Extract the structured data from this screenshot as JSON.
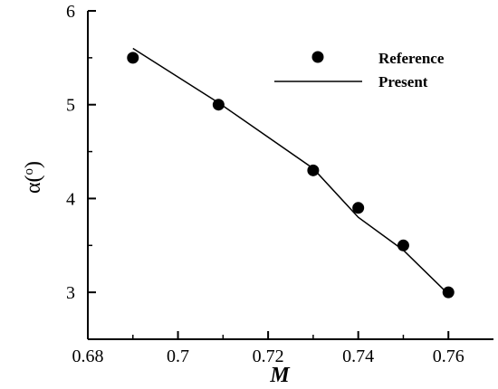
{
  "chart_data": {
    "type": "scatter",
    "xlabel": "M",
    "ylabel": "α(°)",
    "ylabel_main": "α(",
    "ylabel_sup": "o",
    "ylabel_close": ")",
    "xlim": [
      0.68,
      0.77
    ],
    "ylim": [
      2.5,
      6
    ],
    "x_ticks": [
      0.68,
      0.7,
      0.72,
      0.74,
      0.76
    ],
    "x_tick_labels": [
      "0.68",
      "0.7",
      "0.72",
      "0.74",
      "0.76"
    ],
    "y_ticks": [
      3,
      4,
      5,
      6
    ],
    "y_tick_labels": [
      "3",
      "4",
      "5",
      "6"
    ],
    "grid": false,
    "legend_position": "top-right",
    "series": [
      {
        "name": "Reference",
        "style": "markers",
        "color": "#000000",
        "x": [
          0.69,
          0.709,
          0.73,
          0.74,
          0.75,
          0.76
        ],
        "y": [
          5.5,
          5.0,
          4.3,
          3.9,
          3.5,
          3.0
        ]
      },
      {
        "name": "Present",
        "style": "line",
        "color": "#000000",
        "x": [
          0.69,
          0.709,
          0.73,
          0.74,
          0.75,
          0.76
        ],
        "y": [
          5.6,
          5.02,
          4.32,
          3.8,
          3.45,
          2.98
        ]
      }
    ]
  }
}
